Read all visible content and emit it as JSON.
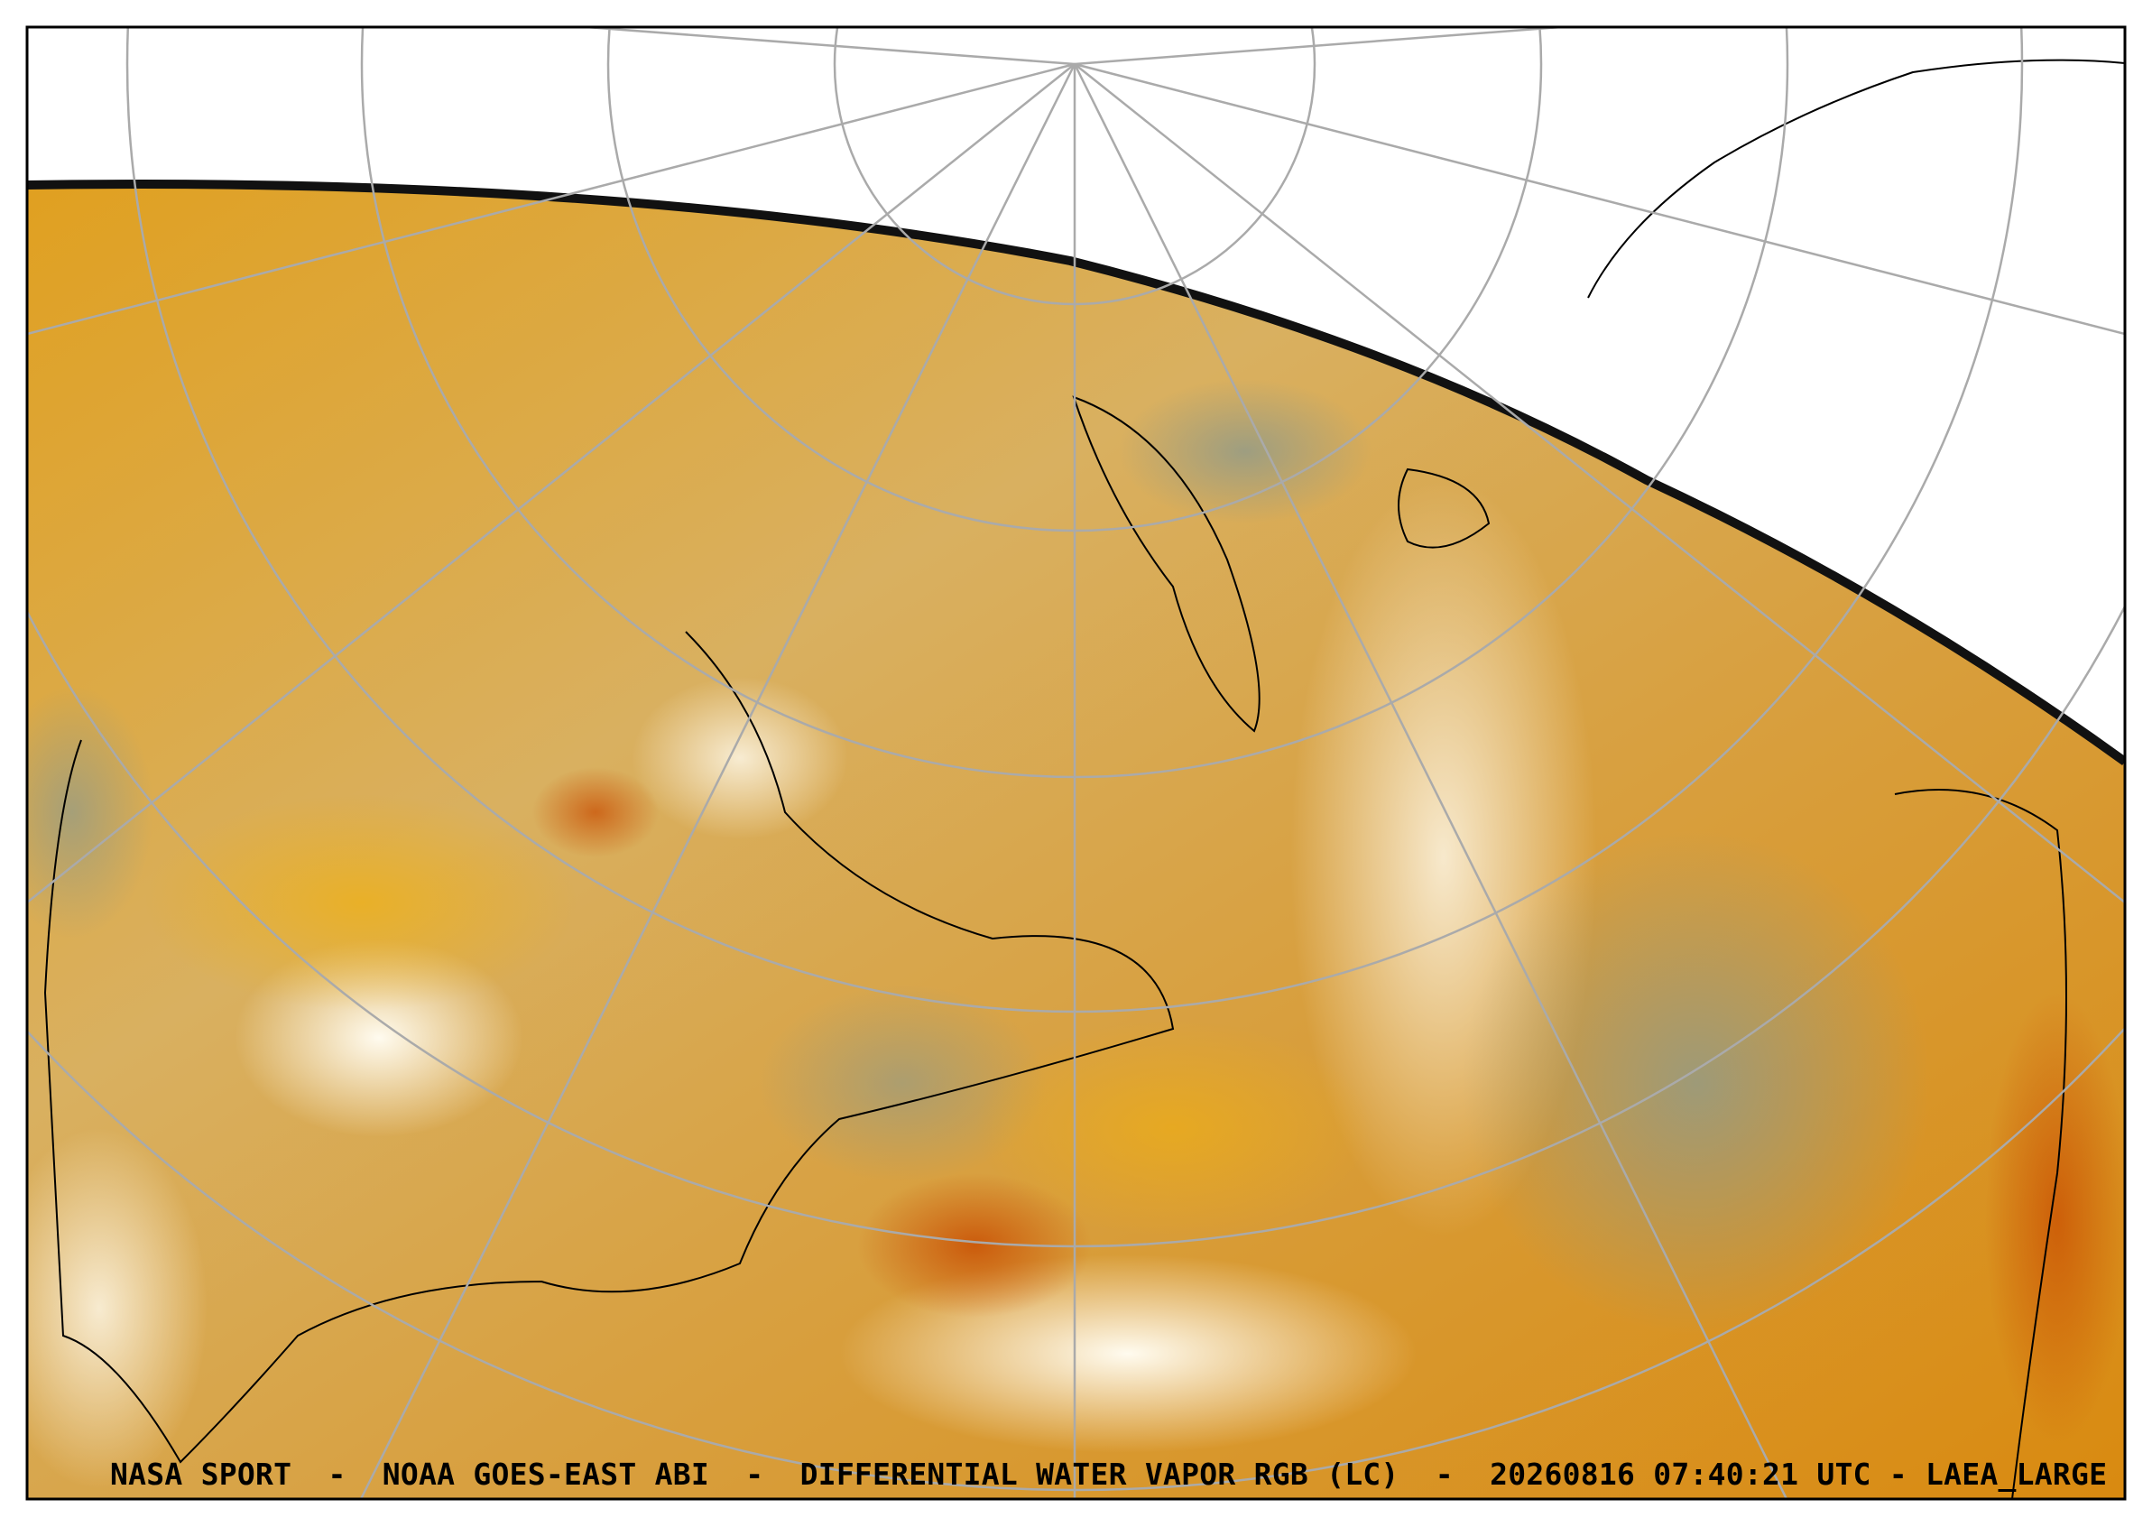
{
  "caption": "NASA SPORT  -  NOAA GOES-EAST ABI  -  DIFFERENTIAL WATER VAPOR RGB (LC)  -  20260816 07:40:21 UTC - LAEA_LARGE"
}
